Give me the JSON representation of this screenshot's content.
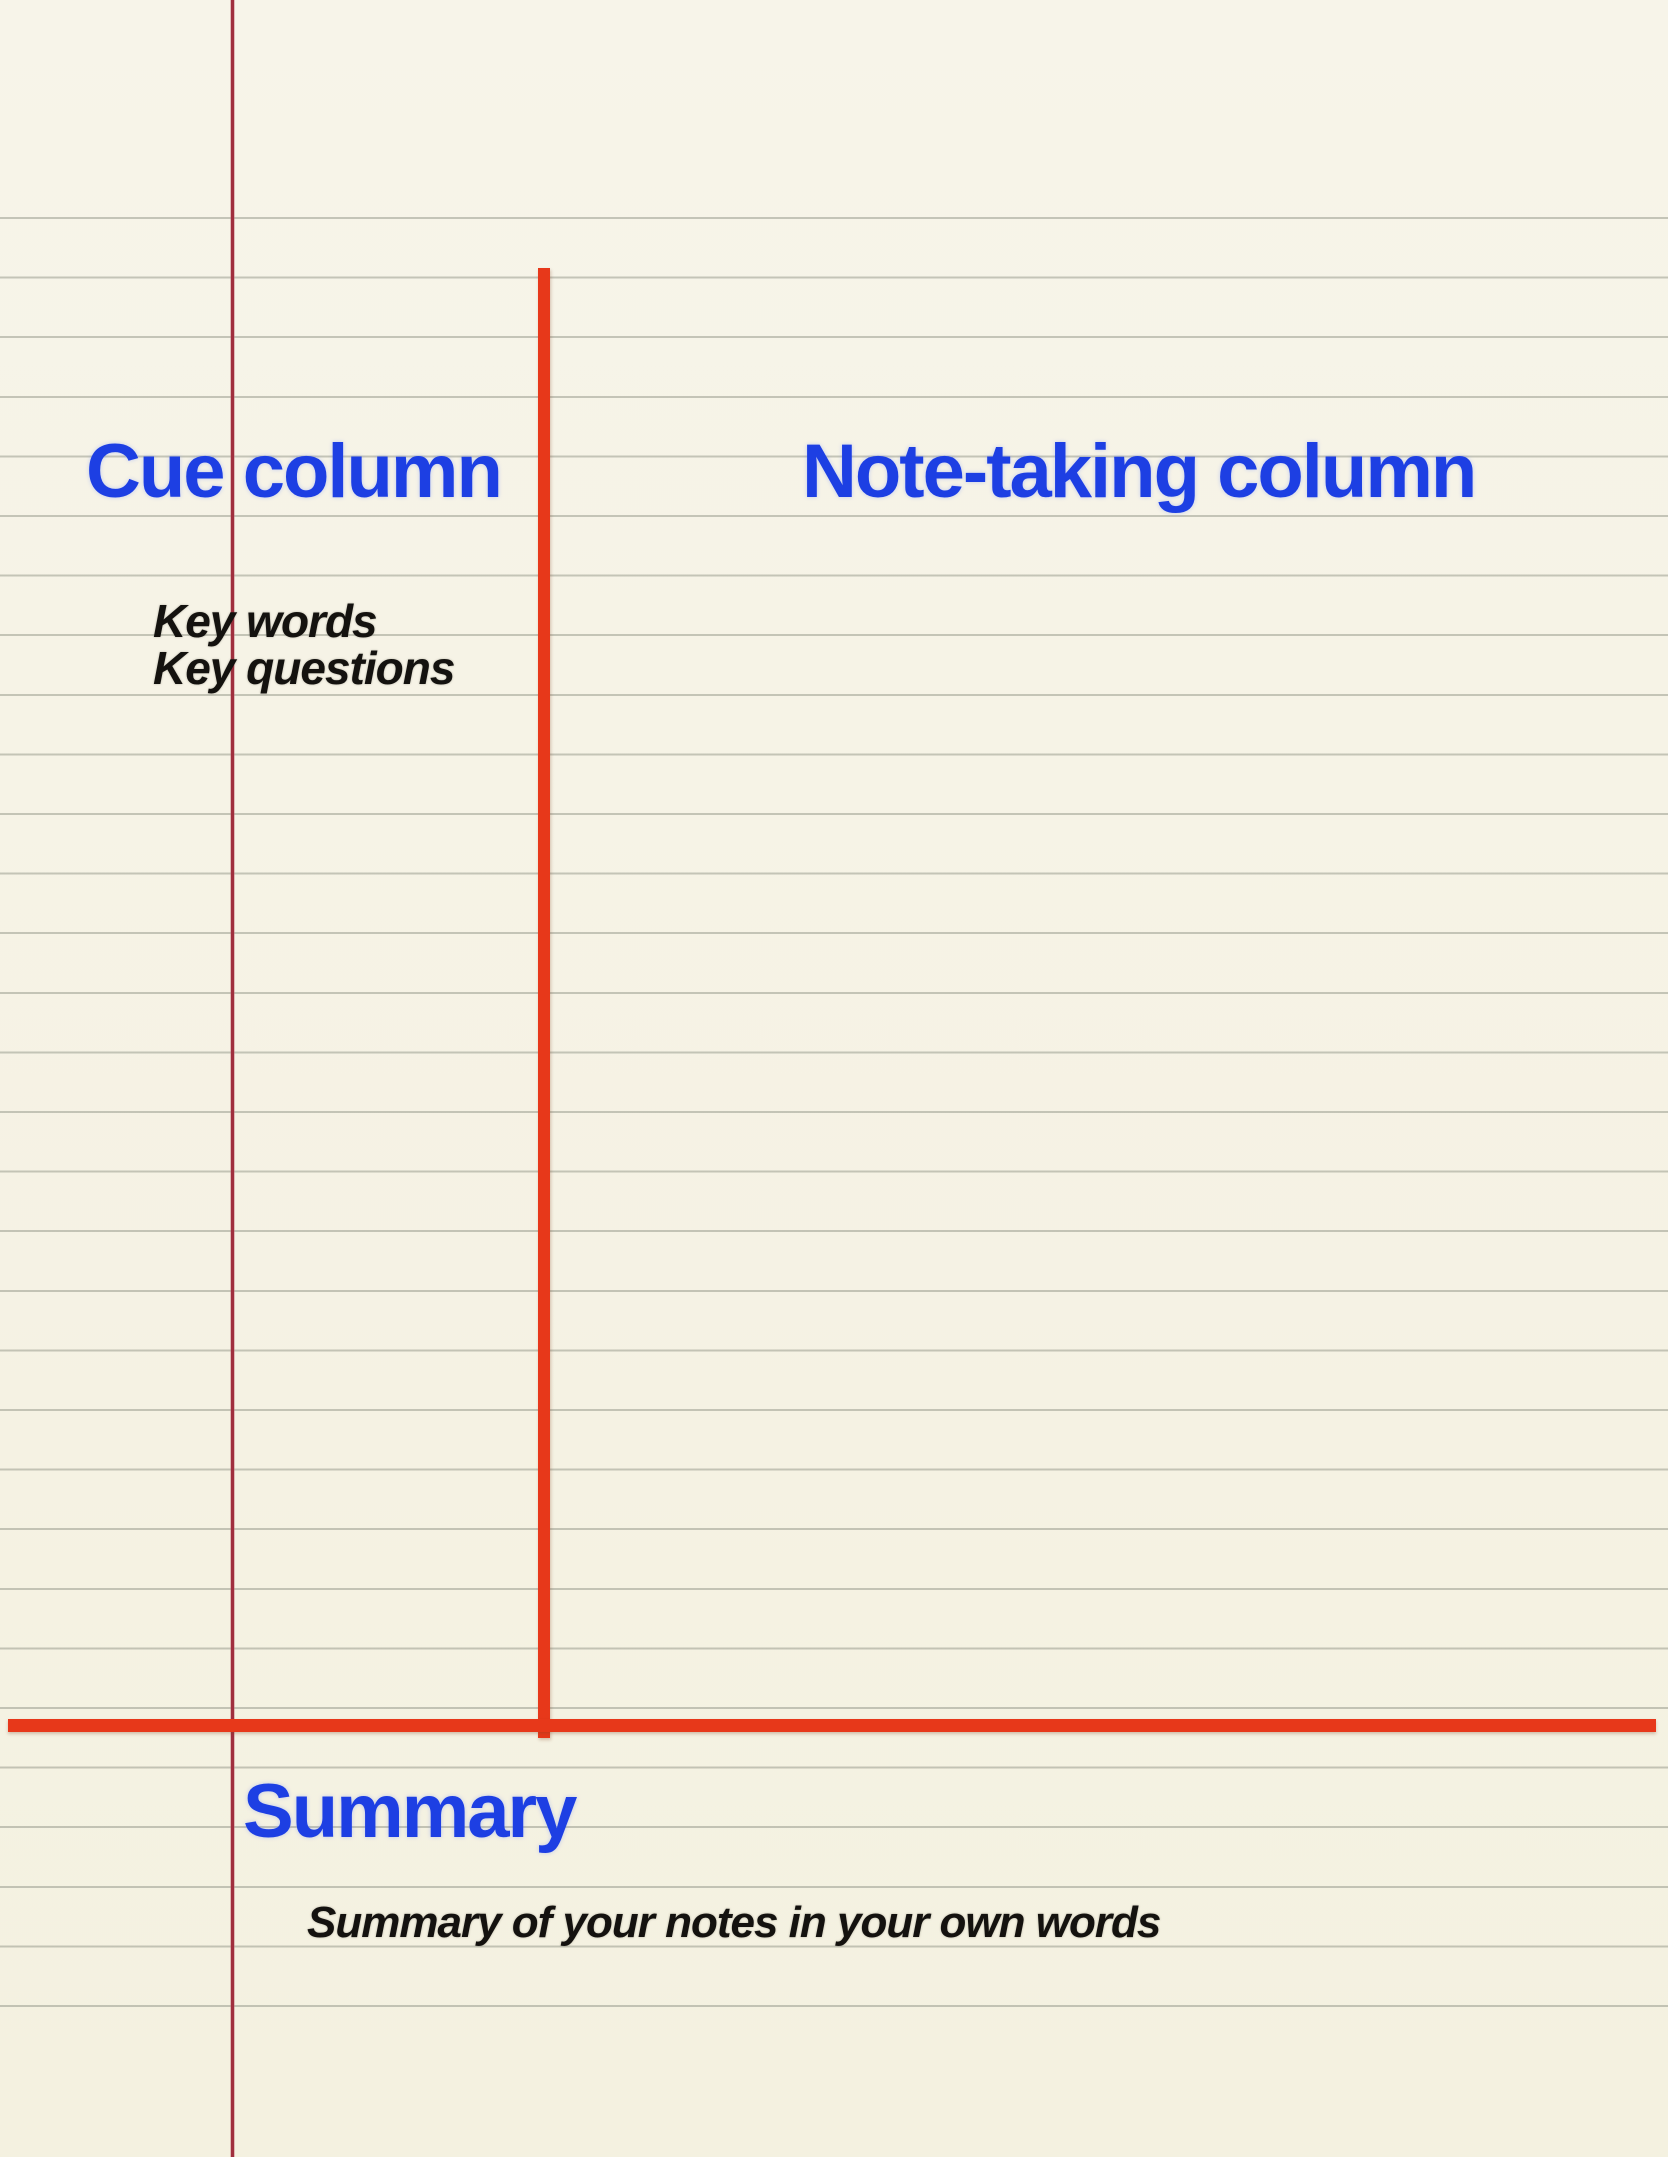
{
  "colors": {
    "paper_top": "#f7f4e9",
    "paper_bottom": "#f4f1e0",
    "rule_line": "rgba(134,138,124,0.45)",
    "margin_line": "#a02f3e",
    "divider_red": "#e7381a",
    "heading_blue": "#1d3fe3",
    "hint_black": "#14120f"
  },
  "cue_column": {
    "heading": "Cue column",
    "hints": [
      "Key words",
      "Key questions"
    ]
  },
  "note_taking_column": {
    "heading": "Note-taking column"
  },
  "summary_section": {
    "heading": "Summary",
    "hint": "Summary of your notes in your own words"
  }
}
